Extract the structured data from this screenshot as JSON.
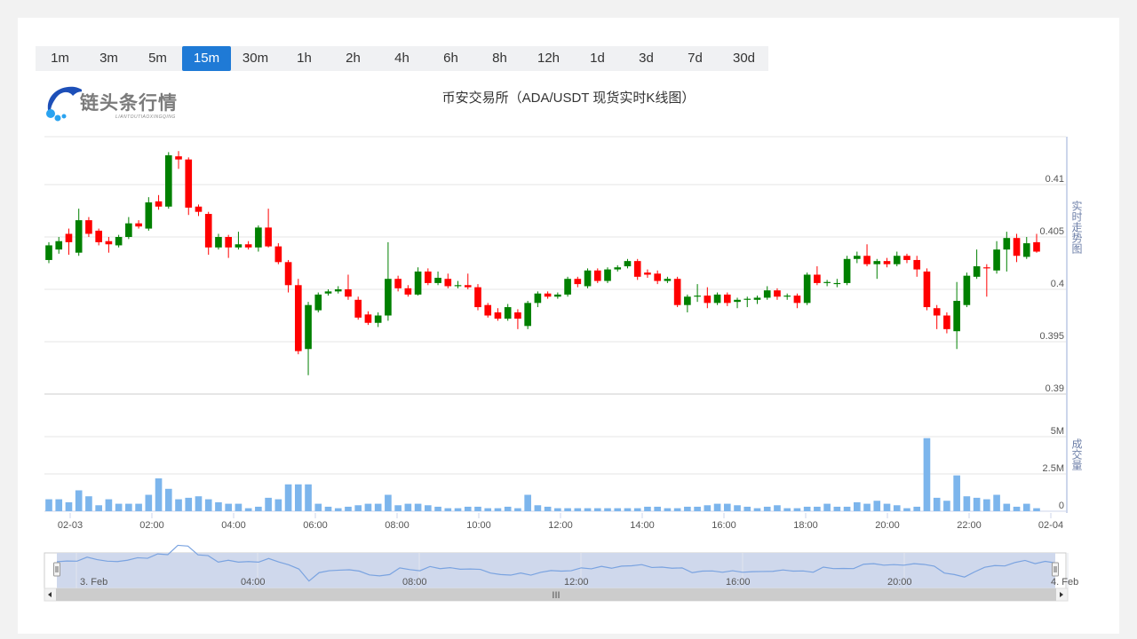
{
  "intervals": [
    "1m",
    "3m",
    "5m",
    "15m",
    "30m",
    "1h",
    "2h",
    "4h",
    "6h",
    "8h",
    "12h",
    "1d",
    "3d",
    "7d",
    "30d"
  ],
  "active_interval": "15m",
  "logo": {
    "text": "链头条行情",
    "sub": "LIANTOUTIAOXINGQING"
  },
  "title": "币安交易所（ADA/USDT 现货实时K线图）",
  "colors": {
    "up": "#008000",
    "down": "#ff0000",
    "volume": "#7cb5ec",
    "accent": "#1f7ad6",
    "navigator_fill": "#cfd8ec"
  },
  "side_labels": {
    "price": "实时走势图",
    "volume": "成交量"
  },
  "chart_data": {
    "type": "candlestick",
    "price_axis": {
      "ticks": [
        "0.39",
        "0.395",
        "0.4",
        "0.405",
        "0.41"
      ],
      "range": [
        0.39,
        0.41
      ]
    },
    "volume_axis": {
      "ticks": [
        "0",
        "2.5M",
        "5M"
      ],
      "range": [
        0,
        5000000
      ]
    },
    "x_ticks": [
      "02-03",
      "02:00",
      "04:00",
      "06:00",
      "08:00",
      "10:00",
      "12:00",
      "14:00",
      "16:00",
      "18:00",
      "20:00",
      "22:00",
      "02-04"
    ],
    "navigator_ticks": [
      "3. Feb",
      "04:00",
      "08:00",
      "12:00",
      "16:00",
      "20:00",
      "4. Feb"
    ],
    "candles": [
      [
        0.4028,
        0.4045,
        0.4025,
        0.4042
      ],
      [
        0.4038,
        0.405,
        0.4034,
        0.4046
      ],
      [
        0.4053,
        0.4058,
        0.4033,
        0.4045
      ],
      [
        0.4035,
        0.4077,
        0.4032,
        0.4066
      ],
      [
        0.4066,
        0.4069,
        0.405,
        0.4053
      ],
      [
        0.4056,
        0.4058,
        0.4042,
        0.4045
      ],
      [
        0.4046,
        0.405,
        0.4035,
        0.4043
      ],
      [
        0.4042,
        0.4052,
        0.404,
        0.405
      ],
      [
        0.405,
        0.4069,
        0.4048,
        0.4063
      ],
      [
        0.4063,
        0.4066,
        0.4058,
        0.406
      ],
      [
        0.4058,
        0.4088,
        0.4056,
        0.4083
      ],
      [
        0.4084,
        0.409,
        0.4076,
        0.4079
      ],
      [
        0.4079,
        0.4131,
        0.4077,
        0.4128
      ],
      [
        0.4127,
        0.4132,
        0.4115,
        0.4124
      ],
      [
        0.4124,
        0.4126,
        0.4071,
        0.4078
      ],
      [
        0.4079,
        0.4081,
        0.407,
        0.4074
      ],
      [
        0.4072,
        0.4074,
        0.4033,
        0.404
      ],
      [
        0.404,
        0.4053,
        0.4038,
        0.405
      ],
      [
        0.405,
        0.4052,
        0.403,
        0.404
      ],
      [
        0.404,
        0.4055,
        0.4038,
        0.4043
      ],
      [
        0.4043,
        0.4046,
        0.4038,
        0.404
      ],
      [
        0.404,
        0.4061,
        0.4036,
        0.4059
      ],
      [
        0.4059,
        0.4077,
        0.404,
        0.4041
      ],
      [
        0.4041,
        0.4044,
        0.4024,
        0.4026
      ],
      [
        0.4026,
        0.4028,
        0.3997,
        0.4004
      ],
      [
        0.4004,
        0.401,
        0.3938,
        0.3941
      ],
      [
        0.3943,
        0.3988,
        0.3918,
        0.3985
      ],
      [
        0.398,
        0.3997,
        0.3978,
        0.3995
      ],
      [
        0.3996,
        0.4,
        0.3994,
        0.3998
      ],
      [
        0.3998,
        0.4003,
        0.3996,
        0.4
      ],
      [
        0.4,
        0.4014,
        0.399,
        0.3993
      ],
      [
        0.399,
        0.3993,
        0.3971,
        0.3973
      ],
      [
        0.3976,
        0.3979,
        0.3966,
        0.3968
      ],
      [
        0.3968,
        0.3978,
        0.3964,
        0.3975
      ],
      [
        0.3975,
        0.4045,
        0.397,
        0.401
      ],
      [
        0.401,
        0.4013,
        0.3998,
        0.4001
      ],
      [
        0.4001,
        0.4004,
        0.3993,
        0.3995
      ],
      [
        0.3995,
        0.4021,
        0.3994,
        0.4017
      ],
      [
        0.4017,
        0.402,
        0.4004,
        0.4006
      ],
      [
        0.4006,
        0.4017,
        0.4004,
        0.4011
      ],
      [
        0.401,
        0.4015,
        0.4001,
        0.4003
      ],
      [
        0.4003,
        0.4008,
        0.4001,
        0.4004
      ],
      [
        0.4004,
        0.4015,
        0.4,
        0.4002
      ],
      [
        0.4002,
        0.4005,
        0.398,
        0.3983
      ],
      [
        0.3985,
        0.3987,
        0.3973,
        0.3975
      ],
      [
        0.3978,
        0.3982,
        0.397,
        0.3972
      ],
      [
        0.3972,
        0.3986,
        0.397,
        0.3983
      ],
      [
        0.3978,
        0.3981,
        0.3962,
        0.3972
      ],
      [
        0.3965,
        0.3989,
        0.3962,
        0.3987
      ],
      [
        0.3987,
        0.3998,
        0.3983,
        0.3996
      ],
      [
        0.3996,
        0.3998,
        0.3991,
        0.3993
      ],
      [
        0.3993,
        0.3997,
        0.3991,
        0.3995
      ],
      [
        0.3995,
        0.4012,
        0.3993,
        0.401
      ],
      [
        0.401,
        0.4012,
        0.4002,
        0.4005
      ],
      [
        0.4003,
        0.402,
        0.4001,
        0.4018
      ],
      [
        0.4018,
        0.402,
        0.4006,
        0.4008
      ],
      [
        0.4008,
        0.4021,
        0.4006,
        0.4019
      ],
      [
        0.4019,
        0.4023,
        0.4017,
        0.4021
      ],
      [
        0.4022,
        0.4029,
        0.402,
        0.4027
      ],
      [
        0.4027,
        0.4029,
        0.4009,
        0.4012
      ],
      [
        0.4016,
        0.4019,
        0.4011,
        0.4014
      ],
      [
        0.4015,
        0.4018,
        0.4005,
        0.4008
      ],
      [
        0.4008,
        0.4012,
        0.4006,
        0.401
      ],
      [
        0.401,
        0.4012,
        0.3983,
        0.3985
      ],
      [
        0.3985,
        0.3995,
        0.3978,
        0.3993
      ],
      [
        0.3993,
        0.4005,
        0.3988,
        0.3994
      ],
      [
        0.3994,
        0.4002,
        0.3982,
        0.3987
      ],
      [
        0.3987,
        0.3997,
        0.3985,
        0.3995
      ],
      [
        0.3995,
        0.3997,
        0.3984,
        0.3987
      ],
      [
        0.3988,
        0.3992,
        0.3982,
        0.399
      ],
      [
        0.399,
        0.3993,
        0.3983,
        0.3991
      ],
      [
        0.399,
        0.3994,
        0.3986,
        0.3992
      ],
      [
        0.3992,
        0.4003,
        0.399,
        0.3999
      ],
      [
        0.3999,
        0.4001,
        0.399,
        0.3993
      ],
      [
        0.3993,
        0.3996,
        0.399,
        0.3994
      ],
      [
        0.3994,
        0.3996,
        0.3982,
        0.3987
      ],
      [
        0.3987,
        0.4016,
        0.3985,
        0.4014
      ],
      [
        0.4014,
        0.4022,
        0.4004,
        0.4006
      ],
      [
        0.4006,
        0.4009,
        0.4003,
        0.4007
      ],
      [
        0.4005,
        0.401,
        0.4002,
        0.4006
      ],
      [
        0.4006,
        0.4032,
        0.4004,
        0.4029
      ],
      [
        0.4029,
        0.4036,
        0.4025,
        0.4032
      ],
      [
        0.4032,
        0.4043,
        0.4022,
        0.4024
      ],
      [
        0.4024,
        0.4029,
        0.401,
        0.4027
      ],
      [
        0.4027,
        0.403,
        0.4021,
        0.4024
      ],
      [
        0.4024,
        0.4036,
        0.4022,
        0.4032
      ],
      [
        0.4032,
        0.4034,
        0.4025,
        0.4028
      ],
      [
        0.4028,
        0.4032,
        0.4012,
        0.4019
      ],
      [
        0.4017,
        0.402,
        0.398,
        0.3983
      ],
      [
        0.3982,
        0.3985,
        0.3962,
        0.3975
      ],
      [
        0.3975,
        0.3978,
        0.3958,
        0.3962
      ],
      [
        0.396,
        0.4007,
        0.3943,
        0.3989
      ],
      [
        0.3985,
        0.4016,
        0.3983,
        0.4013
      ],
      [
        0.4012,
        0.4038,
        0.401,
        0.4022
      ],
      [
        0.4021,
        0.4024,
        0.3993,
        0.402
      ],
      [
        0.4018,
        0.4046,
        0.4015,
        0.4038
      ],
      [
        0.4038,
        0.4055,
        0.4017,
        0.4049
      ],
      [
        0.4049,
        0.4053,
        0.4026,
        0.4032
      ],
      [
        0.4031,
        0.405,
        0.4029,
        0.4044
      ],
      [
        0.4045,
        0.4053,
        0.4035,
        0.4036
      ]
    ],
    "volumes": [
      0.8,
      0.8,
      0.6,
      1.4,
      1.0,
      0.4,
      0.8,
      0.5,
      0.5,
      0.5,
      1.1,
      2.2,
      1.5,
      0.8,
      0.9,
      1.0,
      0.8,
      0.6,
      0.5,
      0.5,
      0.2,
      0.3,
      0.9,
      0.8,
      1.8,
      1.8,
      1.8,
      0.5,
      0.3,
      0.2,
      0.3,
      0.4,
      0.5,
      0.5,
      1.1,
      0.4,
      0.5,
      0.5,
      0.4,
      0.3,
      0.2,
      0.2,
      0.3,
      0.3,
      0.2,
      0.2,
      0.3,
      0.2,
      1.1,
      0.4,
      0.3,
      0.2,
      0.2,
      0.2,
      0.2,
      0.2,
      0.2,
      0.2,
      0.2,
      0.2,
      0.3,
      0.3,
      0.2,
      0.2,
      0.3,
      0.3,
      0.4,
      0.5,
      0.5,
      0.4,
      0.3,
      0.2,
      0.3,
      0.4,
      0.2,
      0.2,
      0.3,
      0.3,
      0.5,
      0.3,
      0.3,
      0.6,
      0.5,
      0.7,
      0.5,
      0.4,
      0.2,
      0.3,
      4.9,
      0.9,
      0.7,
      2.4,
      1.0,
      0.9,
      0.8,
      1.1,
      0.5,
      0.3,
      0.5,
      0.2
    ]
  },
  "navigator": {
    "left_handle": "handle-left",
    "right_handle": "handle-right",
    "scroll_grip": "III"
  }
}
